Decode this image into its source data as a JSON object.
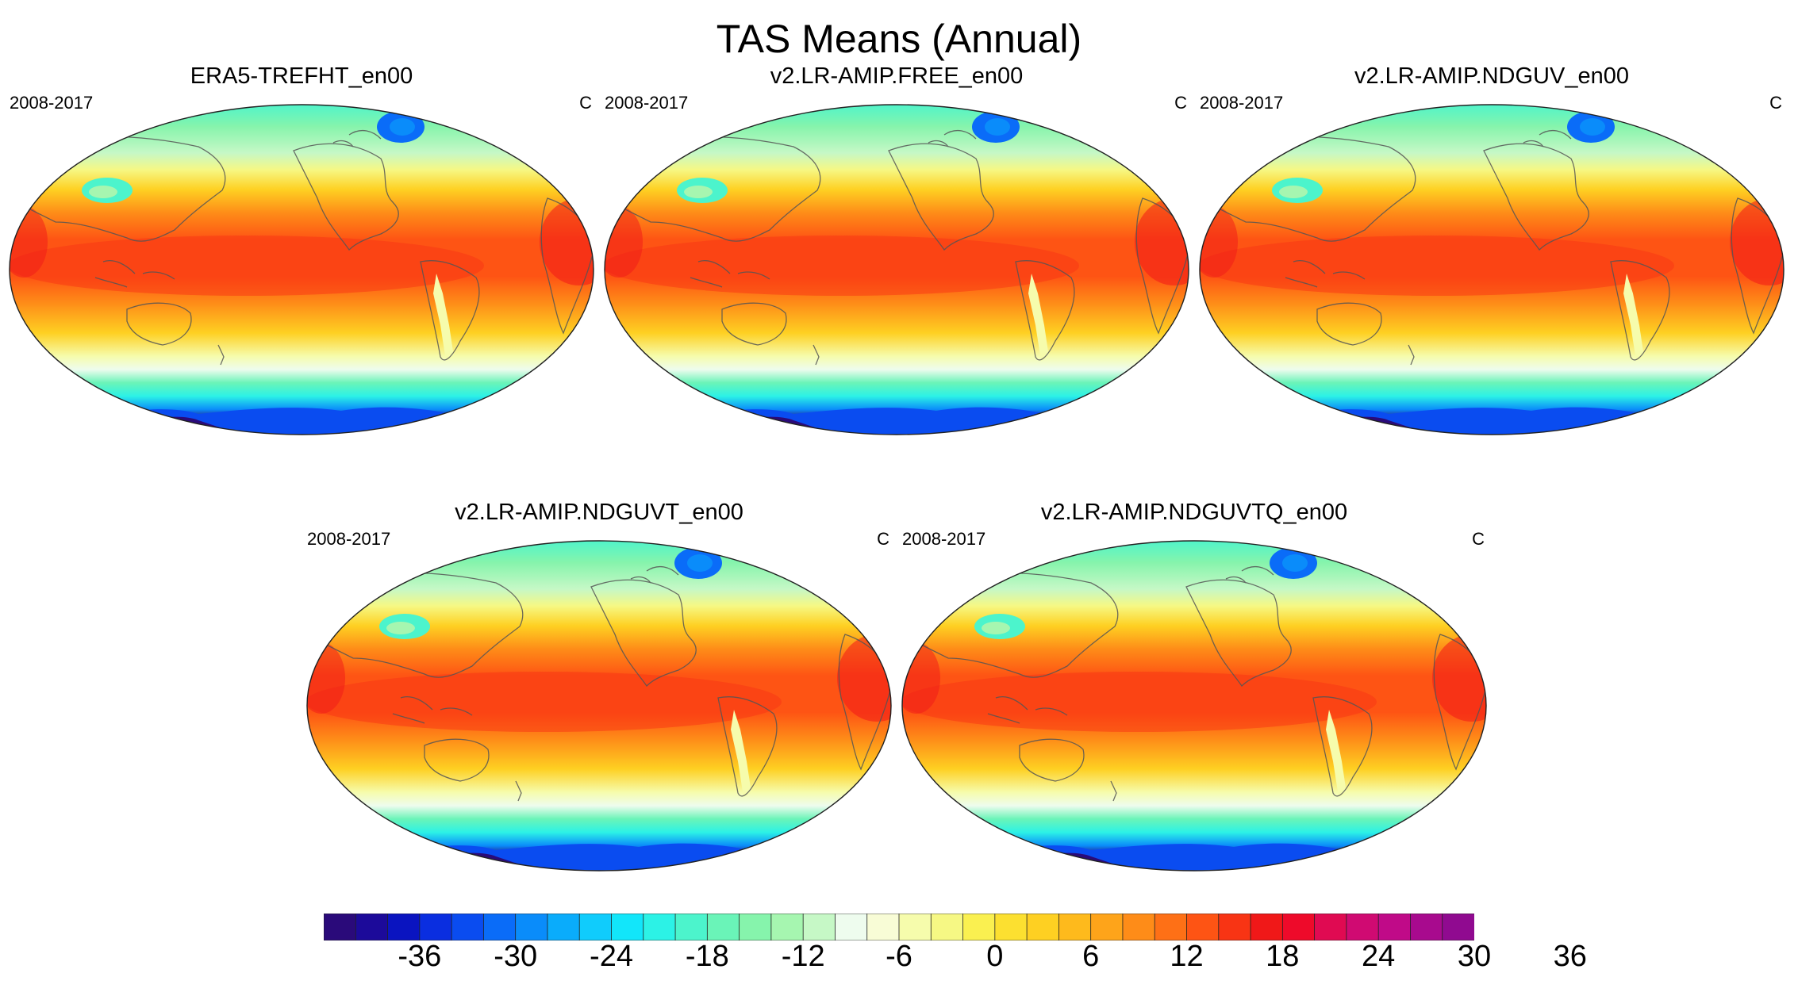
{
  "figure": {
    "title": "TAS Means (Annual)"
  },
  "panels": [
    {
      "title": "ERA5-TREFHT_en00",
      "period": "2008-2017",
      "units": "C"
    },
    {
      "title": "v2.LR-AMIP.FREE_en00",
      "period": "2008-2017",
      "units": "C"
    },
    {
      "title": "v2.LR-AMIP.NDGUV_en00",
      "period": "2008-2017",
      "units": "C"
    },
    {
      "title": "v2.LR-AMIP.NDGUVT_en00",
      "period": "2008-2017",
      "units": "C"
    },
    {
      "title": "v2.LR-AMIP.NDGUVTQ_en00",
      "period": "2008-2017",
      "units": "C"
    }
  ],
  "colorbar": {
    "labels": [
      "-36",
      "-30",
      "-24",
      "-18",
      "-12",
      "-6",
      "0",
      "6",
      "12",
      "18",
      "24",
      "30",
      "36"
    ],
    "colors": [
      "#2a0a7a",
      "#1c0a9a",
      "#0a14c0",
      "#0a2ee0",
      "#0a4cf0",
      "#0a6cf8",
      "#0a8cfa",
      "#0aacfb",
      "#10ccfc",
      "#12e6fa",
      "#2cf2e6",
      "#4cf4cc",
      "#6af4b8",
      "#86f4ac",
      "#a6f6b0",
      "#c6f8c6",
      "#eefcee",
      "#f8fcd6",
      "#f6fcac",
      "#f6f884",
      "#faf050",
      "#fce030",
      "#fed022",
      "#feba1c",
      "#fea41a",
      "#fe8c18",
      "#fe7016",
      "#fe5414",
      "#f83414",
      "#f01818",
      "#ee0a2a",
      "#e00a52",
      "#d00a72",
      "#c00a88",
      "#a80a8e",
      "#900a90"
    ]
  }
}
